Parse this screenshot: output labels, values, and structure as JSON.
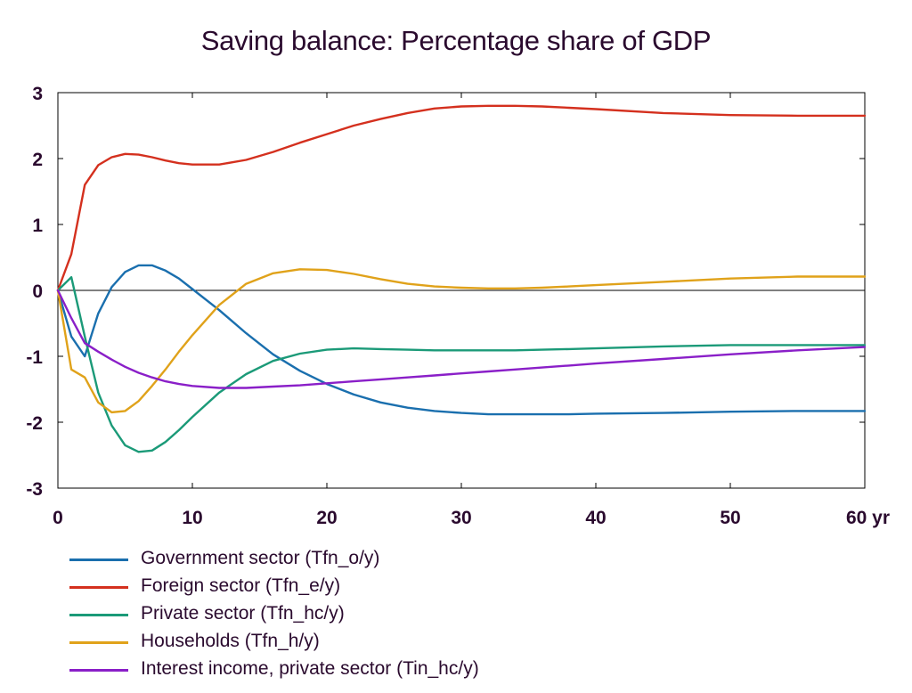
{
  "chart_data": {
    "type": "line",
    "title": "Saving balance: Percentage share of GDP",
    "xlabel": "",
    "ylabel": "",
    "x_unit_label": "yr",
    "xlim": [
      0,
      60
    ],
    "ylim": [
      -3,
      3
    ],
    "x_ticks": [
      0,
      10,
      20,
      30,
      40,
      50,
      60
    ],
    "x_tick_labels": [
      "0",
      "10",
      "20",
      "30",
      "40",
      "50",
      "60 yr"
    ],
    "y_ticks": [
      -3,
      -2,
      -1,
      0,
      1,
      2,
      3
    ],
    "y_tick_labels": [
      "-3",
      "-2",
      "-1",
      "0",
      "1",
      "2",
      "3"
    ],
    "grid": false,
    "zero_line": true,
    "legend_position": "bottom",
    "series": [
      {
        "name": "Government sector (Tfn_o/y)",
        "color": "#1a6fae",
        "x": [
          0,
          1,
          2,
          3,
          4,
          5,
          6,
          7,
          8,
          9,
          10,
          12,
          14,
          16,
          18,
          20,
          22,
          24,
          26,
          28,
          30,
          32,
          34,
          36,
          38,
          40,
          45,
          50,
          55,
          60
        ],
        "y": [
          0,
          -0.7,
          -1.0,
          -0.35,
          0.05,
          0.28,
          0.38,
          0.38,
          0.3,
          0.18,
          0.02,
          -0.3,
          -0.65,
          -0.97,
          -1.22,
          -1.42,
          -1.58,
          -1.7,
          -1.78,
          -1.83,
          -1.86,
          -1.88,
          -1.88,
          -1.88,
          -1.88,
          -1.87,
          -1.86,
          -1.84,
          -1.83,
          -1.83
        ]
      },
      {
        "name": "Foreign sector (Tfn_e/y)",
        "color": "#d4301e",
        "x": [
          0,
          1,
          2,
          3,
          4,
          5,
          6,
          7,
          8,
          9,
          10,
          12,
          14,
          16,
          18,
          20,
          22,
          24,
          26,
          28,
          30,
          32,
          34,
          36,
          38,
          40,
          45,
          50,
          55,
          60
        ],
        "y": [
          0,
          0.55,
          1.6,
          1.9,
          2.02,
          2.07,
          2.06,
          2.02,
          1.97,
          1.93,
          1.91,
          1.91,
          1.98,
          2.1,
          2.24,
          2.37,
          2.5,
          2.6,
          2.69,
          2.76,
          2.79,
          2.8,
          2.8,
          2.79,
          2.77,
          2.75,
          2.69,
          2.66,
          2.65,
          2.65
        ]
      },
      {
        "name": "Private sector (Tfn_hc/y)",
        "color": "#1b9a78",
        "x": [
          0,
          1,
          2,
          3,
          4,
          5,
          6,
          7,
          8,
          9,
          10,
          12,
          14,
          16,
          18,
          20,
          22,
          24,
          26,
          28,
          30,
          32,
          34,
          36,
          38,
          40,
          45,
          50,
          55,
          60
        ],
        "y": [
          0,
          0.2,
          -0.7,
          -1.55,
          -2.05,
          -2.35,
          -2.45,
          -2.43,
          -2.3,
          -2.12,
          -1.92,
          -1.55,
          -1.27,
          -1.07,
          -0.96,
          -0.9,
          -0.88,
          -0.89,
          -0.9,
          -0.91,
          -0.91,
          -0.91,
          -0.91,
          -0.9,
          -0.89,
          -0.88,
          -0.85,
          -0.83,
          -0.83,
          -0.83
        ]
      },
      {
        "name": "Households (Tfn_h/y)",
        "color": "#e0a21a",
        "x": [
          0,
          1,
          2,
          3,
          4,
          5,
          6,
          7,
          8,
          9,
          10,
          12,
          14,
          16,
          18,
          20,
          22,
          24,
          26,
          28,
          30,
          32,
          34,
          36,
          38,
          40,
          45,
          50,
          55,
          60
        ],
        "y": [
          0,
          -1.2,
          -1.32,
          -1.7,
          -1.85,
          -1.83,
          -1.68,
          -1.45,
          -1.2,
          -0.93,
          -0.68,
          -0.22,
          0.1,
          0.26,
          0.32,
          0.31,
          0.25,
          0.17,
          0.1,
          0.06,
          0.04,
          0.03,
          0.03,
          0.04,
          0.06,
          0.08,
          0.13,
          0.18,
          0.21,
          0.21
        ]
      },
      {
        "name": "Interest income, private sector (Tin_hc/y)",
        "color": "#8a1fc8",
        "x": [
          0,
          1,
          2,
          3,
          4,
          5,
          6,
          7,
          8,
          9,
          10,
          12,
          14,
          16,
          18,
          20,
          22,
          24,
          26,
          28,
          30,
          32,
          34,
          36,
          38,
          40,
          45,
          50,
          55,
          60
        ],
        "y": [
          0,
          -0.42,
          -0.8,
          -0.93,
          -1.05,
          -1.16,
          -1.25,
          -1.32,
          -1.38,
          -1.42,
          -1.45,
          -1.48,
          -1.48,
          -1.46,
          -1.44,
          -1.41,
          -1.38,
          -1.35,
          -1.32,
          -1.29,
          -1.26,
          -1.23,
          -1.2,
          -1.17,
          -1.14,
          -1.11,
          -1.04,
          -0.97,
          -0.91,
          -0.86
        ]
      }
    ]
  }
}
